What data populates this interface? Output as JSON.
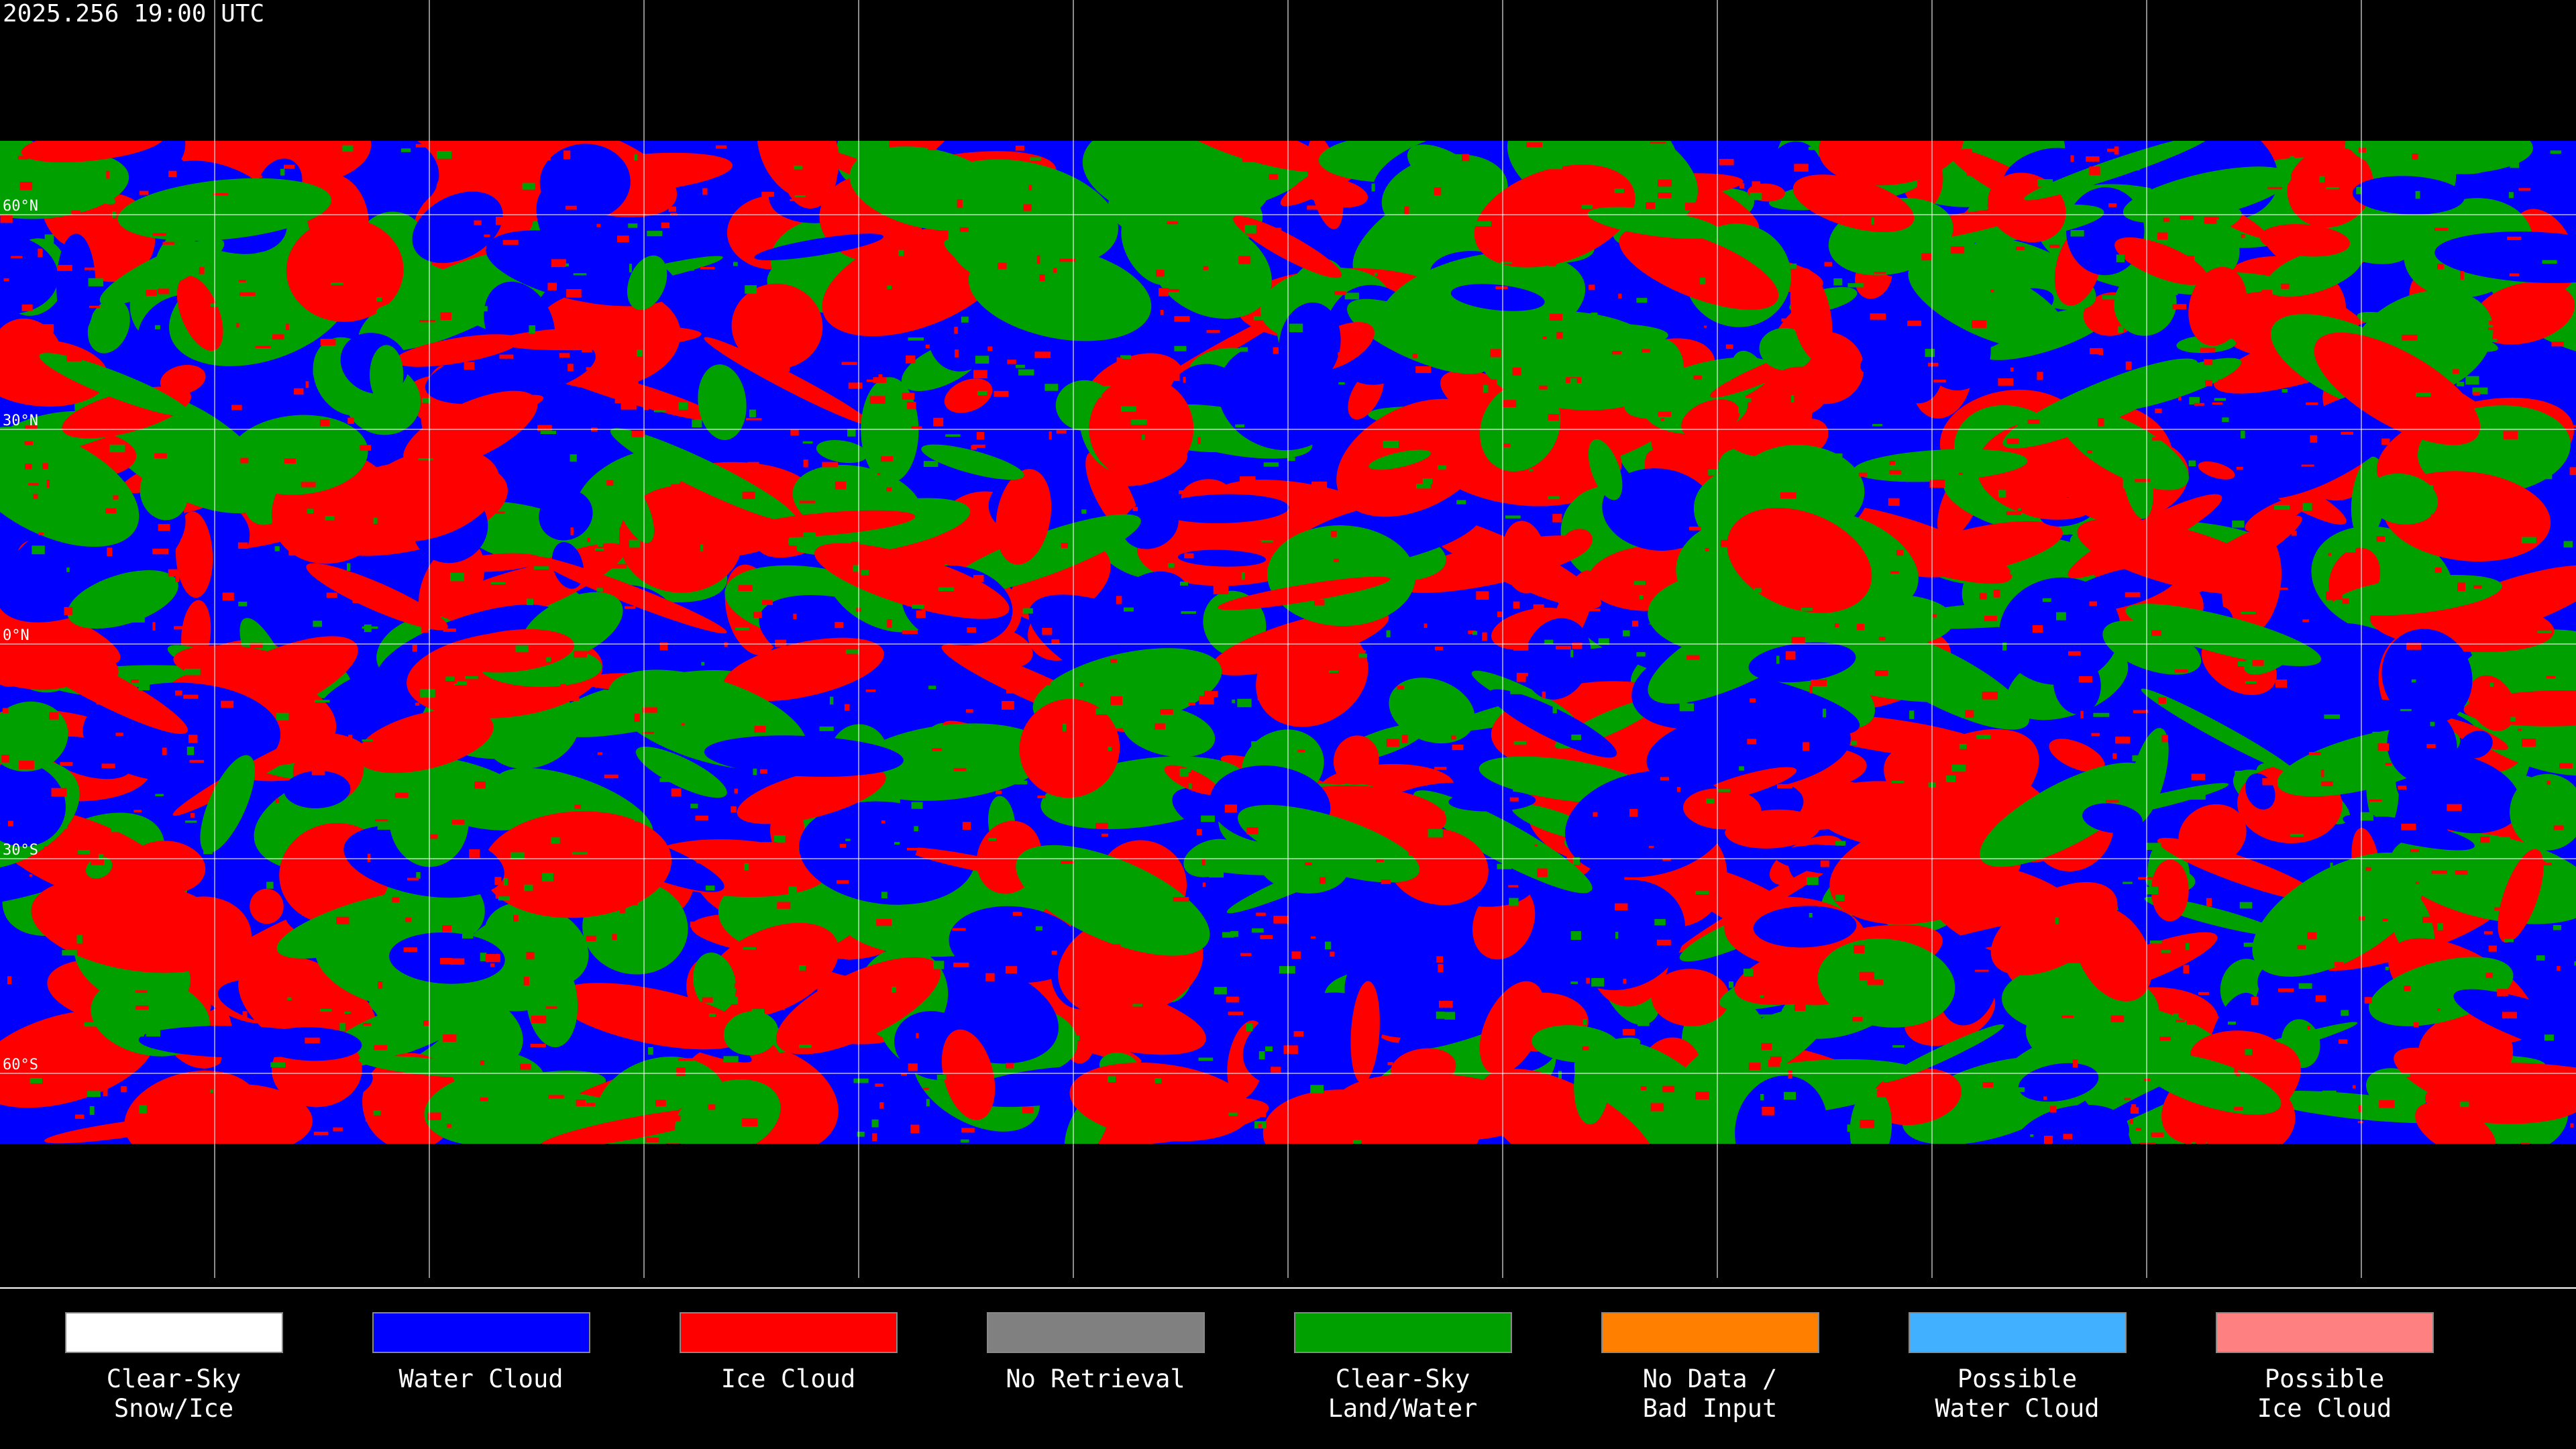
{
  "header": {
    "title": "2025.256 19:00 UTC"
  },
  "map": {
    "latitude_labels": [
      "60°N",
      "30°N",
      "0°N",
      "30°S",
      "60°S"
    ]
  },
  "legend": {
    "items": [
      {
        "lines": [
          "Clear-Sky",
          "Snow/Ice"
        ],
        "color": "#ffffff"
      },
      {
        "lines": [
          "Water Cloud"
        ],
        "color": "#0000ff"
      },
      {
        "lines": [
          "Ice Cloud"
        ],
        "color": "#ff0000"
      },
      {
        "lines": [
          "No Retrieval"
        ],
        "color": "#808080"
      },
      {
        "lines": [
          "Clear-Sky",
          "Land/Water"
        ],
        "color": "#00a000"
      },
      {
        "lines": [
          "No Data /",
          "Bad Input"
        ],
        "color": "#ff8000"
      },
      {
        "lines": [
          "Possible",
          "Water Cloud"
        ],
        "color": "#40b0ff"
      },
      {
        "lines": [
          "Possible",
          "Ice Cloud"
        ],
        "color": "#ff8080"
      }
    ]
  }
}
